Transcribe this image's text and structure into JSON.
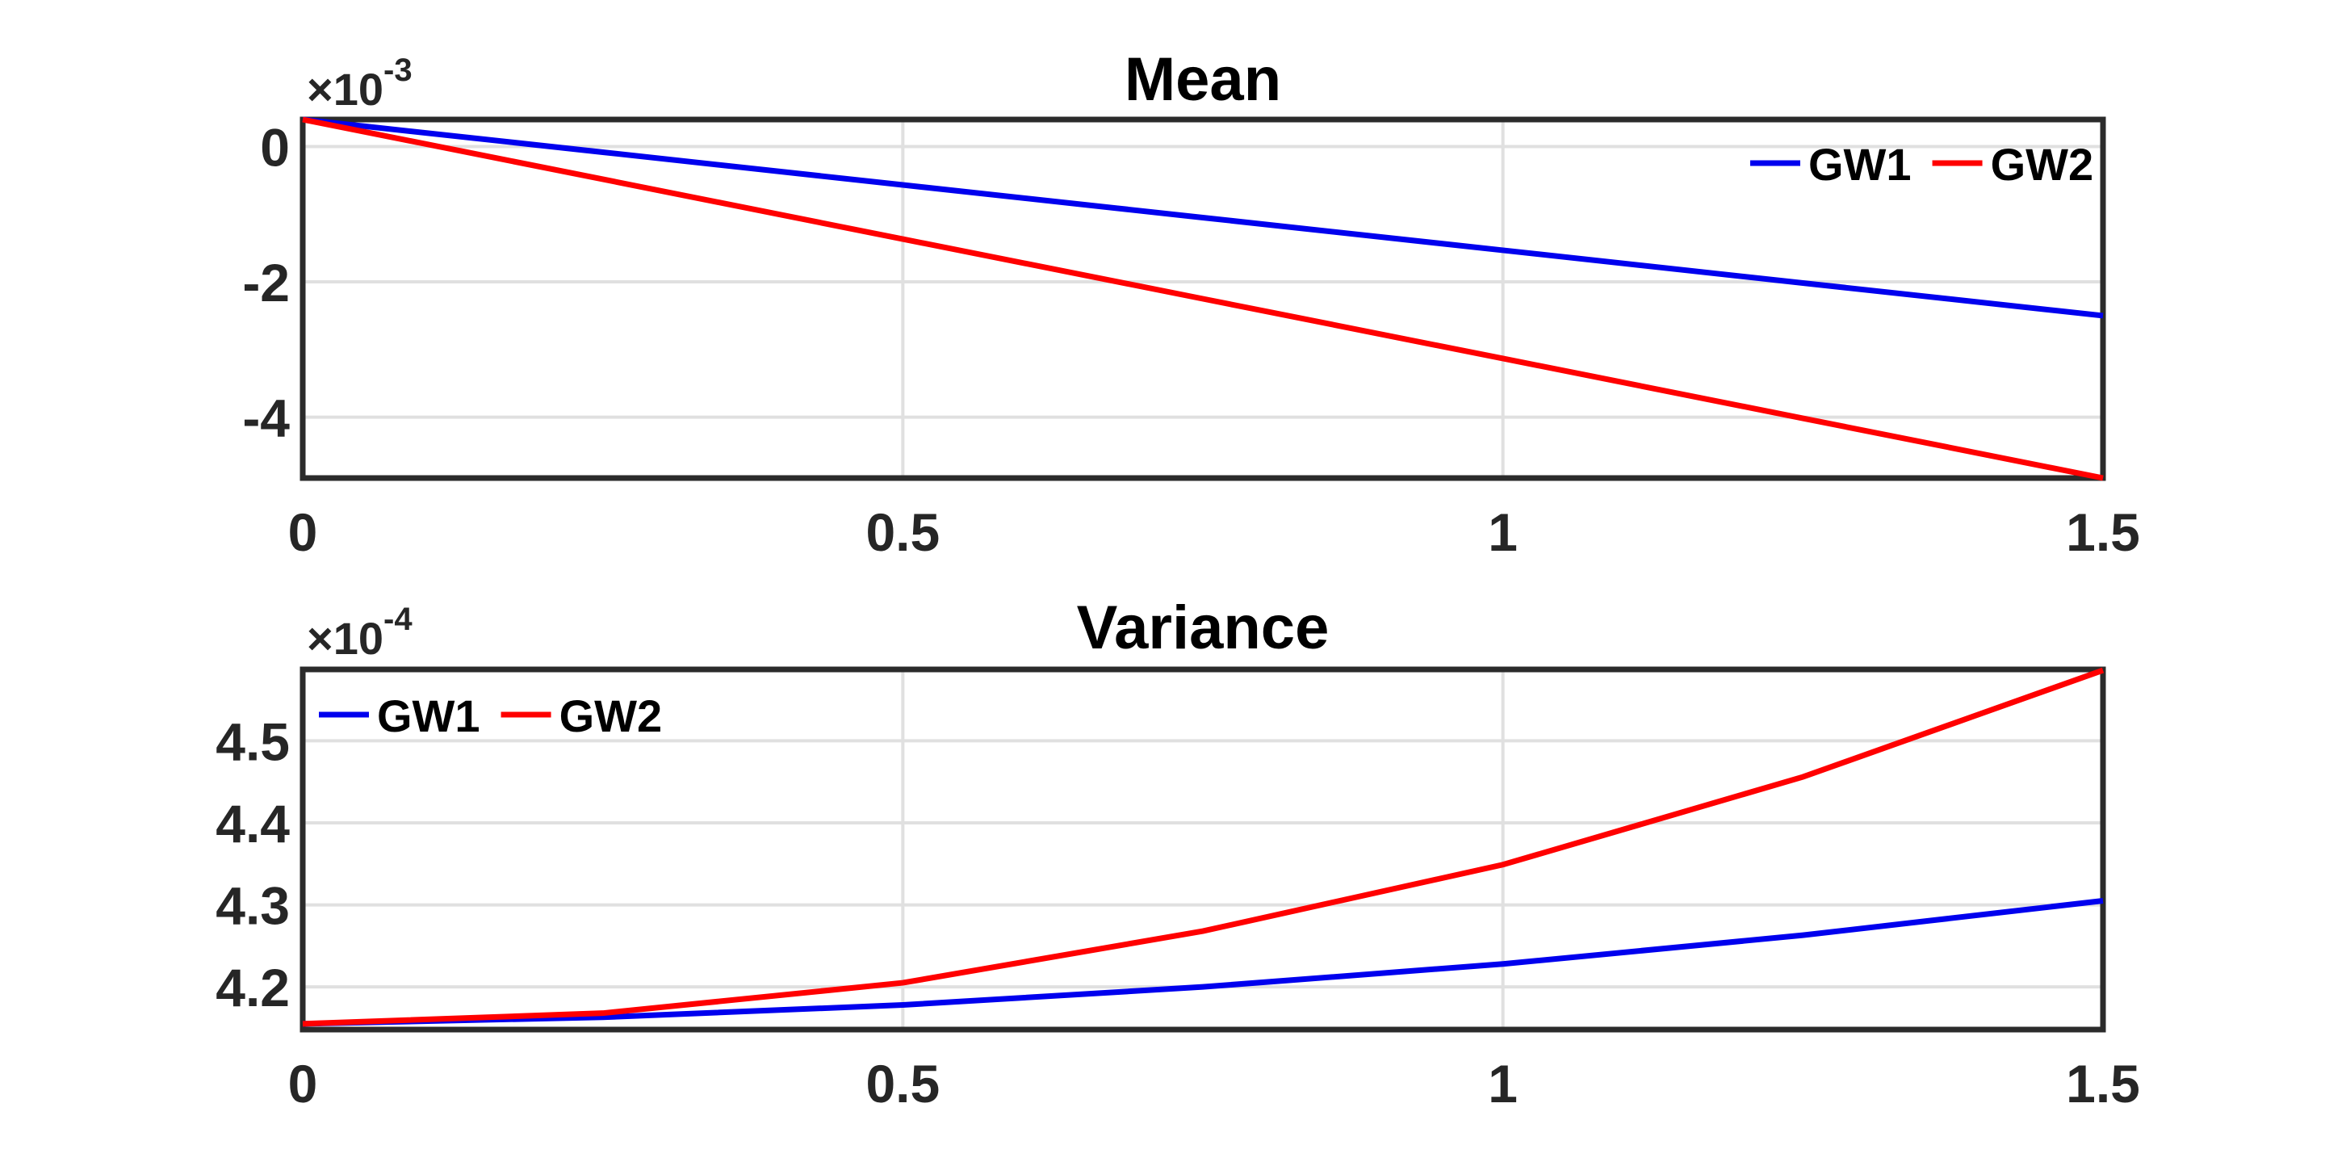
{
  "figure": {
    "background": "#ffffff",
    "axis_color": "#2b2b2b",
    "grid_color": "#e0e0e0",
    "tick_text_color": "#262626",
    "title_text_color": "#000000"
  },
  "chart_data": [
    {
      "type": "line",
      "title": "Mean",
      "y_exponent": {
        "base": "×10",
        "exp": "-3"
      },
      "x": [
        0,
        0.25,
        0.5,
        0.75,
        1,
        1.25,
        1.5
      ],
      "series": [
        {
          "name": "GW1",
          "color": "#0000ee",
          "values": [
            0.0004,
            -8.3e-05,
            -0.000567,
            -0.00105,
            -0.001533,
            -0.002017,
            -0.0025
          ]
        },
        {
          "name": "GW2",
          "color": "#ff0000",
          "values": [
            0.0004,
            -0.000483,
            -0.001367,
            -0.00225,
            -0.003133,
            -0.004017,
            -0.0049
          ]
        }
      ],
      "xlim": [
        0,
        1.5
      ],
      "ylim": [
        -0.0049,
        0.0004
      ],
      "x_ticks": {
        "values": [
          0,
          0.5,
          1,
          1.5
        ],
        "labels": [
          "0",
          "0.5",
          "1",
          "1.5"
        ]
      },
      "y_ticks": {
        "values": [
          0,
          -0.002,
          -0.004
        ],
        "labels": [
          "0",
          "-2",
          "-4"
        ]
      },
      "grid": true,
      "legend": {
        "position": "top-right",
        "entries": [
          "GW1",
          "GW2"
        ]
      }
    },
    {
      "type": "line",
      "title": "Variance",
      "y_exponent": {
        "base": "×10",
        "exp": "-4"
      },
      "x": [
        0,
        0.25,
        0.5,
        0.75,
        1,
        1.25,
        1.5
      ],
      "series": [
        {
          "name": "GW1",
          "color": "#0000ee",
          "values": [
            0.0004155,
            0.0004163,
            0.0004178,
            0.00042,
            0.0004228,
            0.0004263,
            0.0004305
          ]
        },
        {
          "name": "GW2",
          "color": "#ff0000",
          "values": [
            0.0004155,
            0.0004168,
            0.0004205,
            0.0004268,
            0.0004349,
            0.0004456,
            0.0004586
          ]
        }
      ],
      "xlim": [
        0,
        1.5
      ],
      "ylim": [
        0.0004148,
        0.0004587
      ],
      "x_ticks": {
        "values": [
          0,
          0.5,
          1,
          1.5
        ],
        "labels": [
          "0",
          "0.5",
          "1",
          "1.5"
        ]
      },
      "y_ticks": {
        "values": [
          0.00042,
          0.00043,
          0.00044,
          0.00045
        ],
        "labels": [
          "4.2",
          "4.3",
          "4.4",
          "4.5"
        ]
      },
      "grid": true,
      "legend": {
        "position": "top-left",
        "entries": [
          "GW1",
          "GW2"
        ]
      }
    }
  ]
}
